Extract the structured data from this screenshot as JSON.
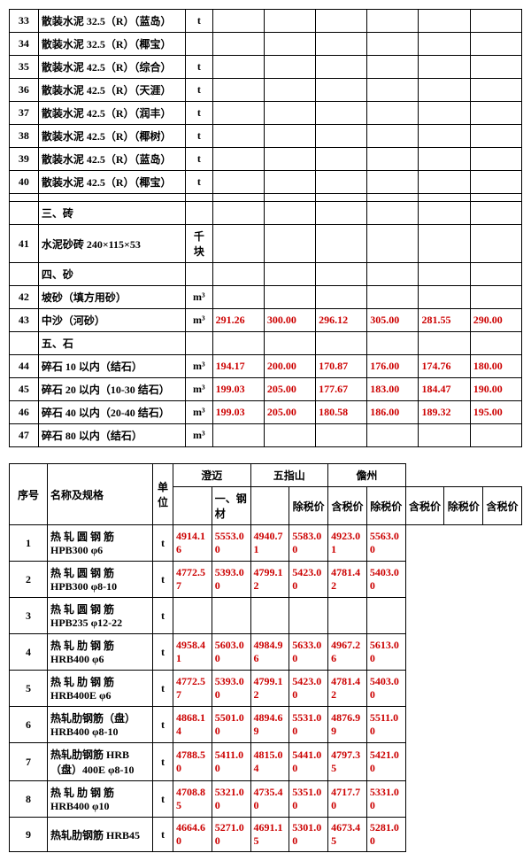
{
  "table1": {
    "rows": [
      {
        "idx": "33",
        "name": "散装水泥 32.5（R）（蓝岛）",
        "unit": "t",
        "v": [
          "",
          "",
          "",
          "",
          "",
          ""
        ]
      },
      {
        "idx": "34",
        "name": "散装水泥 32.5（R）（椰宝）",
        "unit": "",
        "v": [
          "",
          "",
          "",
          "",
          "",
          ""
        ]
      },
      {
        "idx": "35",
        "name": "散装水泥 42.5（R）（综合）",
        "unit": "t",
        "v": [
          "",
          "",
          "",
          "",
          "",
          ""
        ]
      },
      {
        "idx": "36",
        "name": "散装水泥 42.5（R）（天涯）",
        "unit": "t",
        "v": [
          "",
          "",
          "",
          "",
          "",
          ""
        ]
      },
      {
        "idx": "37",
        "name": "散装水泥 42.5（R）（润丰）",
        "unit": "t",
        "v": [
          "",
          "",
          "",
          "",
          "",
          ""
        ]
      },
      {
        "idx": "38",
        "name": "散装水泥 42.5（R）（椰树）",
        "unit": "t",
        "v": [
          "",
          "",
          "",
          "",
          "",
          ""
        ]
      },
      {
        "idx": "39",
        "name": "散装水泥 42.5（R）（蓝岛）",
        "unit": "t",
        "v": [
          "",
          "",
          "",
          "",
          "",
          ""
        ]
      },
      {
        "idx": "40",
        "name": "散装水泥 42.5（R）（椰宝）",
        "unit": "t",
        "v": [
          "",
          "",
          "",
          "",
          "",
          ""
        ]
      },
      {
        "idx": "",
        "name": "",
        "unit": "",
        "v": [
          "",
          "",
          "",
          "",
          "",
          ""
        ]
      },
      {
        "idx": "",
        "name": "三、砖",
        "unit": "",
        "v": [
          "",
          "",
          "",
          "",
          "",
          ""
        ]
      },
      {
        "idx": "41",
        "name": "水泥砂砖 240×115×53",
        "unit": "千块",
        "v": [
          "",
          "",
          "",
          "",
          "",
          ""
        ]
      },
      {
        "idx": "",
        "name": "四、砂",
        "unit": "",
        "v": [
          "",
          "",
          "",
          "",
          "",
          ""
        ]
      },
      {
        "idx": "42",
        "name": "坡砂（填方用砂）",
        "unit": "m³",
        "v": [
          "",
          "",
          "",
          "",
          "",
          ""
        ]
      },
      {
        "idx": "43",
        "name": "中沙（河砂）",
        "unit": "m³",
        "v": [
          "291.26",
          "300.00",
          "296.12",
          "305.00",
          "281.55",
          "290.00"
        ]
      },
      {
        "idx": "",
        "name": "五、石",
        "unit": "",
        "v": [
          "",
          "",
          "",
          "",
          "",
          ""
        ]
      },
      {
        "idx": "44",
        "name": "碎石 10 以内（结石）",
        "unit": "m³",
        "v": [
          "194.17",
          "200.00",
          "170.87",
          "176.00",
          "174.76",
          "180.00"
        ]
      },
      {
        "idx": "45",
        "name": "碎石 20 以内（10-30 结石）",
        "unit": "m³",
        "v": [
          "199.03",
          "205.00",
          "177.67",
          "183.00",
          "184.47",
          "190.00"
        ]
      },
      {
        "idx": "46",
        "name": "碎石 40 以内（20-40 结石）",
        "unit": "m³",
        "v": [
          "199.03",
          "205.00",
          "180.58",
          "186.00",
          "189.32",
          "195.00"
        ]
      },
      {
        "idx": "47",
        "name": "碎石 80 以内（结石）",
        "unit": "m³",
        "v": [
          "",
          "",
          "",
          "",
          "",
          ""
        ]
      }
    ]
  },
  "table2": {
    "header": {
      "idx": "序号",
      "name": "名称及规格",
      "unit": "单位",
      "region1": "澄迈",
      "region2": "五指山",
      "region3": "儋州",
      "sub1": "除税价",
      "sub2": "含税价"
    },
    "rows": [
      {
        "idx": "",
        "name": "一、钢材",
        "unit": "",
        "v": [
          "",
          "",
          "",
          "",
          "",
          ""
        ]
      },
      {
        "idx": "1",
        "name": "热 轧 圆 钢 筋 HPB300 φ6",
        "unit": "t",
        "v": [
          "4914.16",
          "5553.00",
          "4940.71",
          "5583.00",
          "4923.01",
          "5563.00"
        ]
      },
      {
        "idx": "2",
        "name": "热 轧 圆 钢 筋 HPB300 φ8-10",
        "unit": "t",
        "v": [
          "4772.57",
          "5393.00",
          "4799.12",
          "5423.00",
          "4781.42",
          "5403.00"
        ]
      },
      {
        "idx": "3",
        "name": "热 轧 圆 钢 筋 HPB235 φ12-22",
        "unit": "t",
        "v": [
          "",
          "",
          "",
          "",
          "",
          ""
        ]
      },
      {
        "idx": "4",
        "name": "热 轧 肋 钢 筋 HRB400 φ6",
        "unit": "t",
        "v": [
          "4958.41",
          "5603.00",
          "4984.96",
          "5633.00",
          "4967.26",
          "5613.00"
        ]
      },
      {
        "idx": "5",
        "name": "热 轧 肋 钢 筋 HRB400E φ6",
        "unit": "t",
        "v": [
          "4772.57",
          "5393.00",
          "4799.12",
          "5423.00",
          "4781.42",
          "5403.00"
        ]
      },
      {
        "idx": "6",
        "name": "热轧肋钢筋（盘）HRB400 φ8-10",
        "unit": "t",
        "v": [
          "4868.14",
          "5501.00",
          "4894.69",
          "5531.00",
          "4876.99",
          "5511.00"
        ]
      },
      {
        "idx": "7",
        "name": "热轧肋钢筋 HRB（盘）400E φ8-10",
        "unit": "t",
        "v": [
          "4788.50",
          "5411.00",
          "4815.04",
          "5441.00",
          "4797.35",
          "5421.00"
        ]
      },
      {
        "idx": "8",
        "name": "热 轧 肋 钢 筋 HRB400 φ10",
        "unit": "t",
        "v": [
          "4708.85",
          "5321.00",
          "4735.40",
          "5351.00",
          "4717.70",
          "5331.00"
        ]
      },
      {
        "idx": "9",
        "name": "热轧肋钢筋 HRB45",
        "unit": "t",
        "v": [
          "4664.60",
          "5271.00",
          "4691.15",
          "5301.00",
          "4673.45",
          "5281.00"
        ]
      }
    ]
  }
}
